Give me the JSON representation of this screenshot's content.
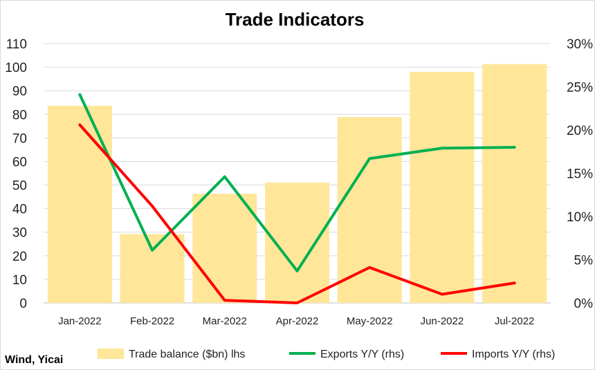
{
  "chart_data": {
    "type": "bar",
    "title": "Trade Indicators",
    "source": "Wind, Yicai",
    "categories": [
      "Jan-2022",
      "Feb-2022",
      "Mar-2022",
      "Apr-2022",
      "May-2022",
      "Jun-2022",
      "Jul-2022"
    ],
    "y_left": {
      "ylim": [
        0,
        110
      ],
      "ticks": [
        "0",
        "10",
        "20",
        "30",
        "40",
        "50",
        "60",
        "70",
        "80",
        "90",
        "100",
        "110"
      ]
    },
    "y_right": {
      "ylim": [
        0,
        30
      ],
      "ticks": [
        "0%",
        "5%",
        "10%",
        "15%",
        "20%",
        "25%",
        "30%"
      ]
    },
    "grid": true,
    "legend_position": "bottom",
    "series": [
      {
        "name": "Trade balance ($bn) lhs",
        "type": "bar",
        "axis": "left",
        "color": "#FFE699",
        "values": [
          83.6,
          29.2,
          46.3,
          51.0,
          78.8,
          98.0,
          101.3
        ]
      },
      {
        "name": "Exports Y/Y (rhs)",
        "type": "line",
        "axis": "right",
        "color": "#00B050",
        "values": [
          24.1,
          6.1,
          14.6,
          3.7,
          16.7,
          17.9,
          18.0
        ]
      },
      {
        "name": "Imports Y/Y (rhs)",
        "type": "line",
        "axis": "right",
        "color": "#FF0000",
        "values": [
          20.6,
          11.2,
          0.3,
          0.0,
          4.1,
          1.0,
          2.3
        ]
      }
    ]
  }
}
